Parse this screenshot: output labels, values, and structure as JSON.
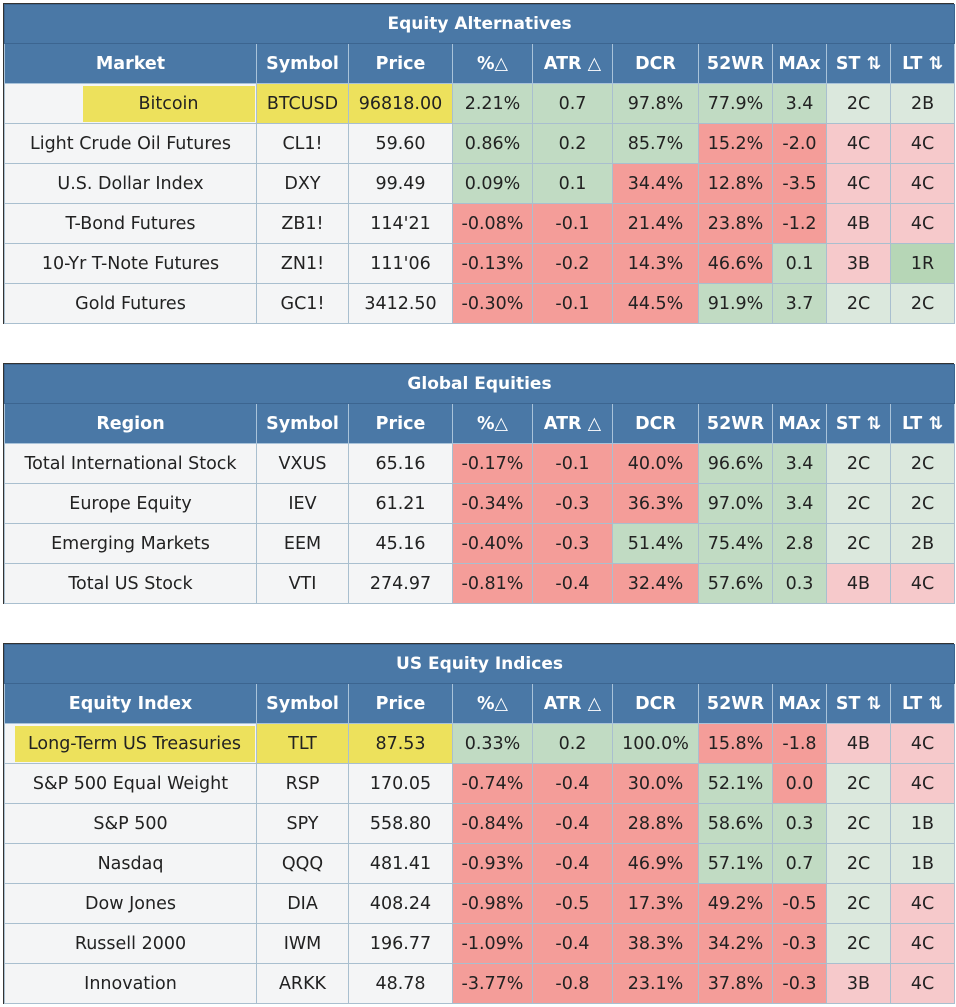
{
  "columns_common": [
    "Symbol",
    "Price",
    "%△",
    "ATR △",
    "DCR",
    "52WR",
    "MAx",
    "ST ⇅",
    "LT ⇅"
  ],
  "colors": {
    "header_bg": "#4a78a6",
    "highlight": "#ede15c",
    "green": "#c1dbc3",
    "red": "#f49d99",
    "light_green": "#dbe8dd",
    "light_red": "#f6c9cb"
  },
  "tables": [
    {
      "title": "Equity Alternatives",
      "first_col": "Market",
      "rows": [
        [
          "Bitcoin",
          "BTCUSD",
          "96818.00",
          "2.21%",
          "0.7",
          "97.8%",
          "77.9%",
          "3.4",
          "2C",
          "2B"
        ],
        [
          "Light Crude Oil Futures",
          "CL1!",
          "59.60",
          "0.86%",
          "0.2",
          "85.7%",
          "15.2%",
          "-2.0",
          "4C",
          "4C"
        ],
        [
          "U.S. Dollar Index",
          "DXY",
          "99.49",
          "0.09%",
          "0.1",
          "34.4%",
          "12.8%",
          "-3.5",
          "4C",
          "4C"
        ],
        [
          "T-Bond Futures",
          "ZB1!",
          "114'21",
          "-0.08%",
          "-0.1",
          "21.4%",
          "23.8%",
          "-1.2",
          "4B",
          "4C"
        ],
        [
          "10-Yr T-Note Futures",
          "ZN1!",
          "111'06",
          "-0.13%",
          "-0.2",
          "14.3%",
          "46.6%",
          "0.1",
          "3B",
          "1R"
        ],
        [
          "Gold Futures",
          "GC1!",
          "3412.50",
          "-0.30%",
          "-0.1",
          "44.5%",
          "91.9%",
          "3.7",
          "2C",
          "2C"
        ]
      ]
    },
    {
      "title": "Global Equities",
      "first_col": "Region",
      "rows": [
        [
          "Total International Stock",
          "VXUS",
          "65.16",
          "-0.17%",
          "-0.1",
          "40.0%",
          "96.6%",
          "3.4",
          "2C",
          "2C"
        ],
        [
          "Europe Equity",
          "IEV",
          "61.21",
          "-0.34%",
          "-0.3",
          "36.3%",
          "97.0%",
          "3.4",
          "2C",
          "2C"
        ],
        [
          "Emerging Markets",
          "EEM",
          "45.16",
          "-0.40%",
          "-0.3",
          "51.4%",
          "75.4%",
          "2.8",
          "2C",
          "2B"
        ],
        [
          "Total US Stock",
          "VTI",
          "274.97",
          "-0.81%",
          "-0.4",
          "32.4%",
          "57.6%",
          "0.3",
          "4B",
          "4C"
        ]
      ]
    },
    {
      "title": "US Equity Indices",
      "first_col": "Equity Index",
      "rows": [
        [
          "Long-Term US Treasuries",
          "TLT",
          "87.53",
          "0.33%",
          "0.2",
          "100.0%",
          "15.8%",
          "-1.8",
          "4B",
          "4C"
        ],
        [
          "S&P 500 Equal Weight",
          "RSP",
          "170.05",
          "-0.74%",
          "-0.4",
          "30.0%",
          "52.1%",
          "0.0",
          "2C",
          "4C"
        ],
        [
          "S&P 500",
          "SPY",
          "558.80",
          "-0.84%",
          "-0.4",
          "28.8%",
          "58.6%",
          "0.3",
          "2C",
          "1B"
        ],
        [
          "Nasdaq",
          "QQQ",
          "481.41",
          "-0.93%",
          "-0.4",
          "46.9%",
          "57.1%",
          "0.7",
          "2C",
          "1B"
        ],
        [
          "Dow Jones",
          "DIA",
          "408.24",
          "-0.98%",
          "-0.5",
          "17.3%",
          "49.2%",
          "-0.5",
          "2C",
          "4C"
        ],
        [
          "Russell 2000",
          "IWM",
          "196.77",
          "-1.09%",
          "-0.4",
          "38.3%",
          "34.2%",
          "-0.3",
          "2C",
          "4C"
        ],
        [
          "Innovation",
          "ARKK",
          "48.78",
          "-3.77%",
          "-0.8",
          "23.1%",
          "37.8%",
          "-0.3",
          "3B",
          "4C"
        ]
      ]
    }
  ]
}
